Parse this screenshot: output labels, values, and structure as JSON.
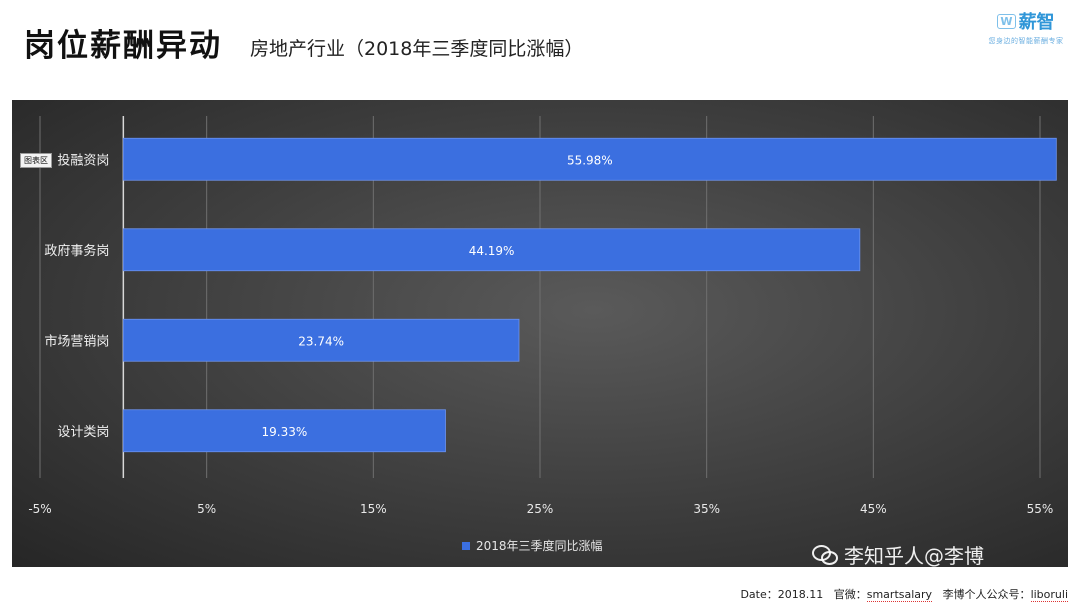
{
  "header": {
    "title": "岗位薪酬异动",
    "subtitle": "房地产行业（2018年三季度同比涨幅）"
  },
  "logo": {
    "box_text": "W",
    "brand": "薪智",
    "tagline": "您身边的智能薪酬专家",
    "icon": "xinzhi-logo-icon"
  },
  "chart_tag": "图表区",
  "chart_data": {
    "type": "bar",
    "orientation": "horizontal",
    "categories": [
      "投融资岗",
      "政府事务岗",
      "市场营销岗",
      "设计类岗"
    ],
    "series": [
      {
        "name": "2018年三季度同比涨幅",
        "values": [
          55.98,
          44.19,
          23.74,
          19.33
        ]
      }
    ],
    "data_labels": [
      "55.98%",
      "44.19%",
      "23.74%",
      "19.33%"
    ],
    "xlim": [
      -5,
      55
    ],
    "xticks": [
      -5,
      5,
      15,
      25,
      35,
      45,
      55
    ],
    "xtick_labels": [
      "-5%",
      "5%",
      "15%",
      "25%",
      "35%",
      "45%",
      "55%"
    ],
    "grid": true,
    "legend_position": "bottom",
    "bar_color": "#3b6fe0",
    "background": "dark-gray-gradient"
  },
  "footer": {
    "date_label": "Date：2018.11",
    "weibo_label": "官微：",
    "weibo_value": "smartsalary",
    "wechat_label": "李博个人公众号：",
    "wechat_value": "liboruli"
  },
  "watermark": {
    "icon": "wechat-icon",
    "text": "李知乎人@李博"
  }
}
